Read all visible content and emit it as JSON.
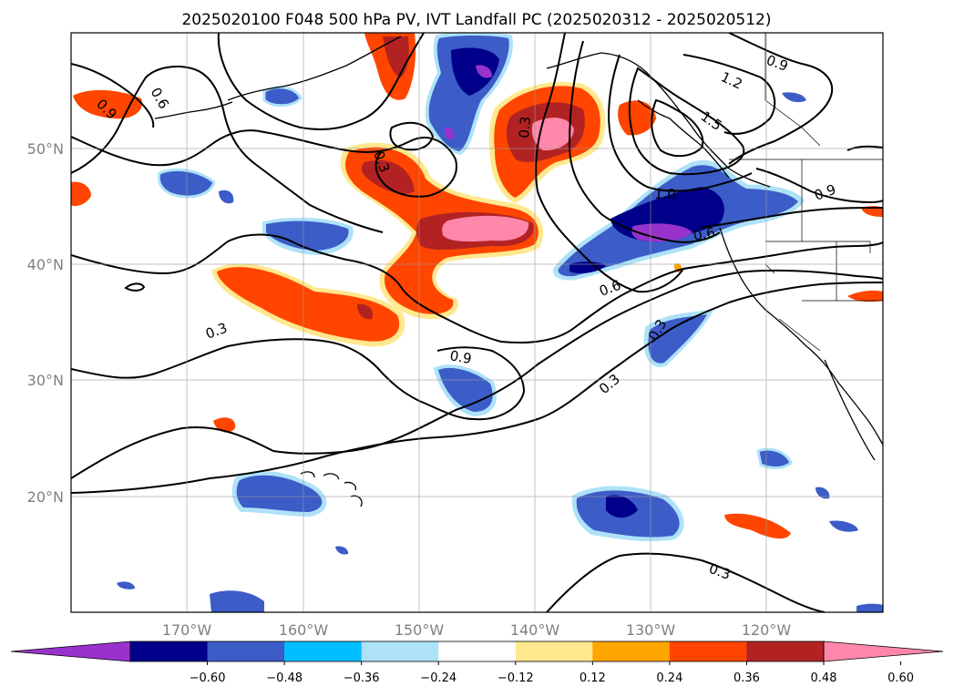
{
  "title": "2025020100 F048 500 hPa PV, IVT Landfall PC (2025020312 - 2025020512)",
  "map": {
    "lon_labels": [
      "170°W",
      "160°W",
      "150°W",
      "140°W",
      "130°W",
      "120°W"
    ],
    "lat_labels": [
      "50°N",
      "40°N",
      "30°N",
      "20°N"
    ]
  },
  "contour_labels": [
    "0.6",
    "0.9",
    "0.3",
    "0.3",
    "0.3",
    "0.9",
    "0.6",
    "0.3",
    "0.3",
    "1.2",
    "1.5",
    "0.9",
    "1.0",
    "0.6",
    "0.9",
    "0.3"
  ],
  "colorbar": {
    "ticks": [
      "−0.60",
      "−0.48",
      "−0.36",
      "−0.24",
      "−0.12",
      "0.12",
      "0.24",
      "0.36",
      "0.48",
      "0.60"
    ],
    "colors": [
      "#9932CC",
      "#00008B",
      "#3C5CC8",
      "#00BFFF",
      "#AEE2F8",
      "#FFFFFF",
      "#FFE88E",
      "#FFA500",
      "#FF4500",
      "#B22222",
      "#FF88AA"
    ]
  }
}
